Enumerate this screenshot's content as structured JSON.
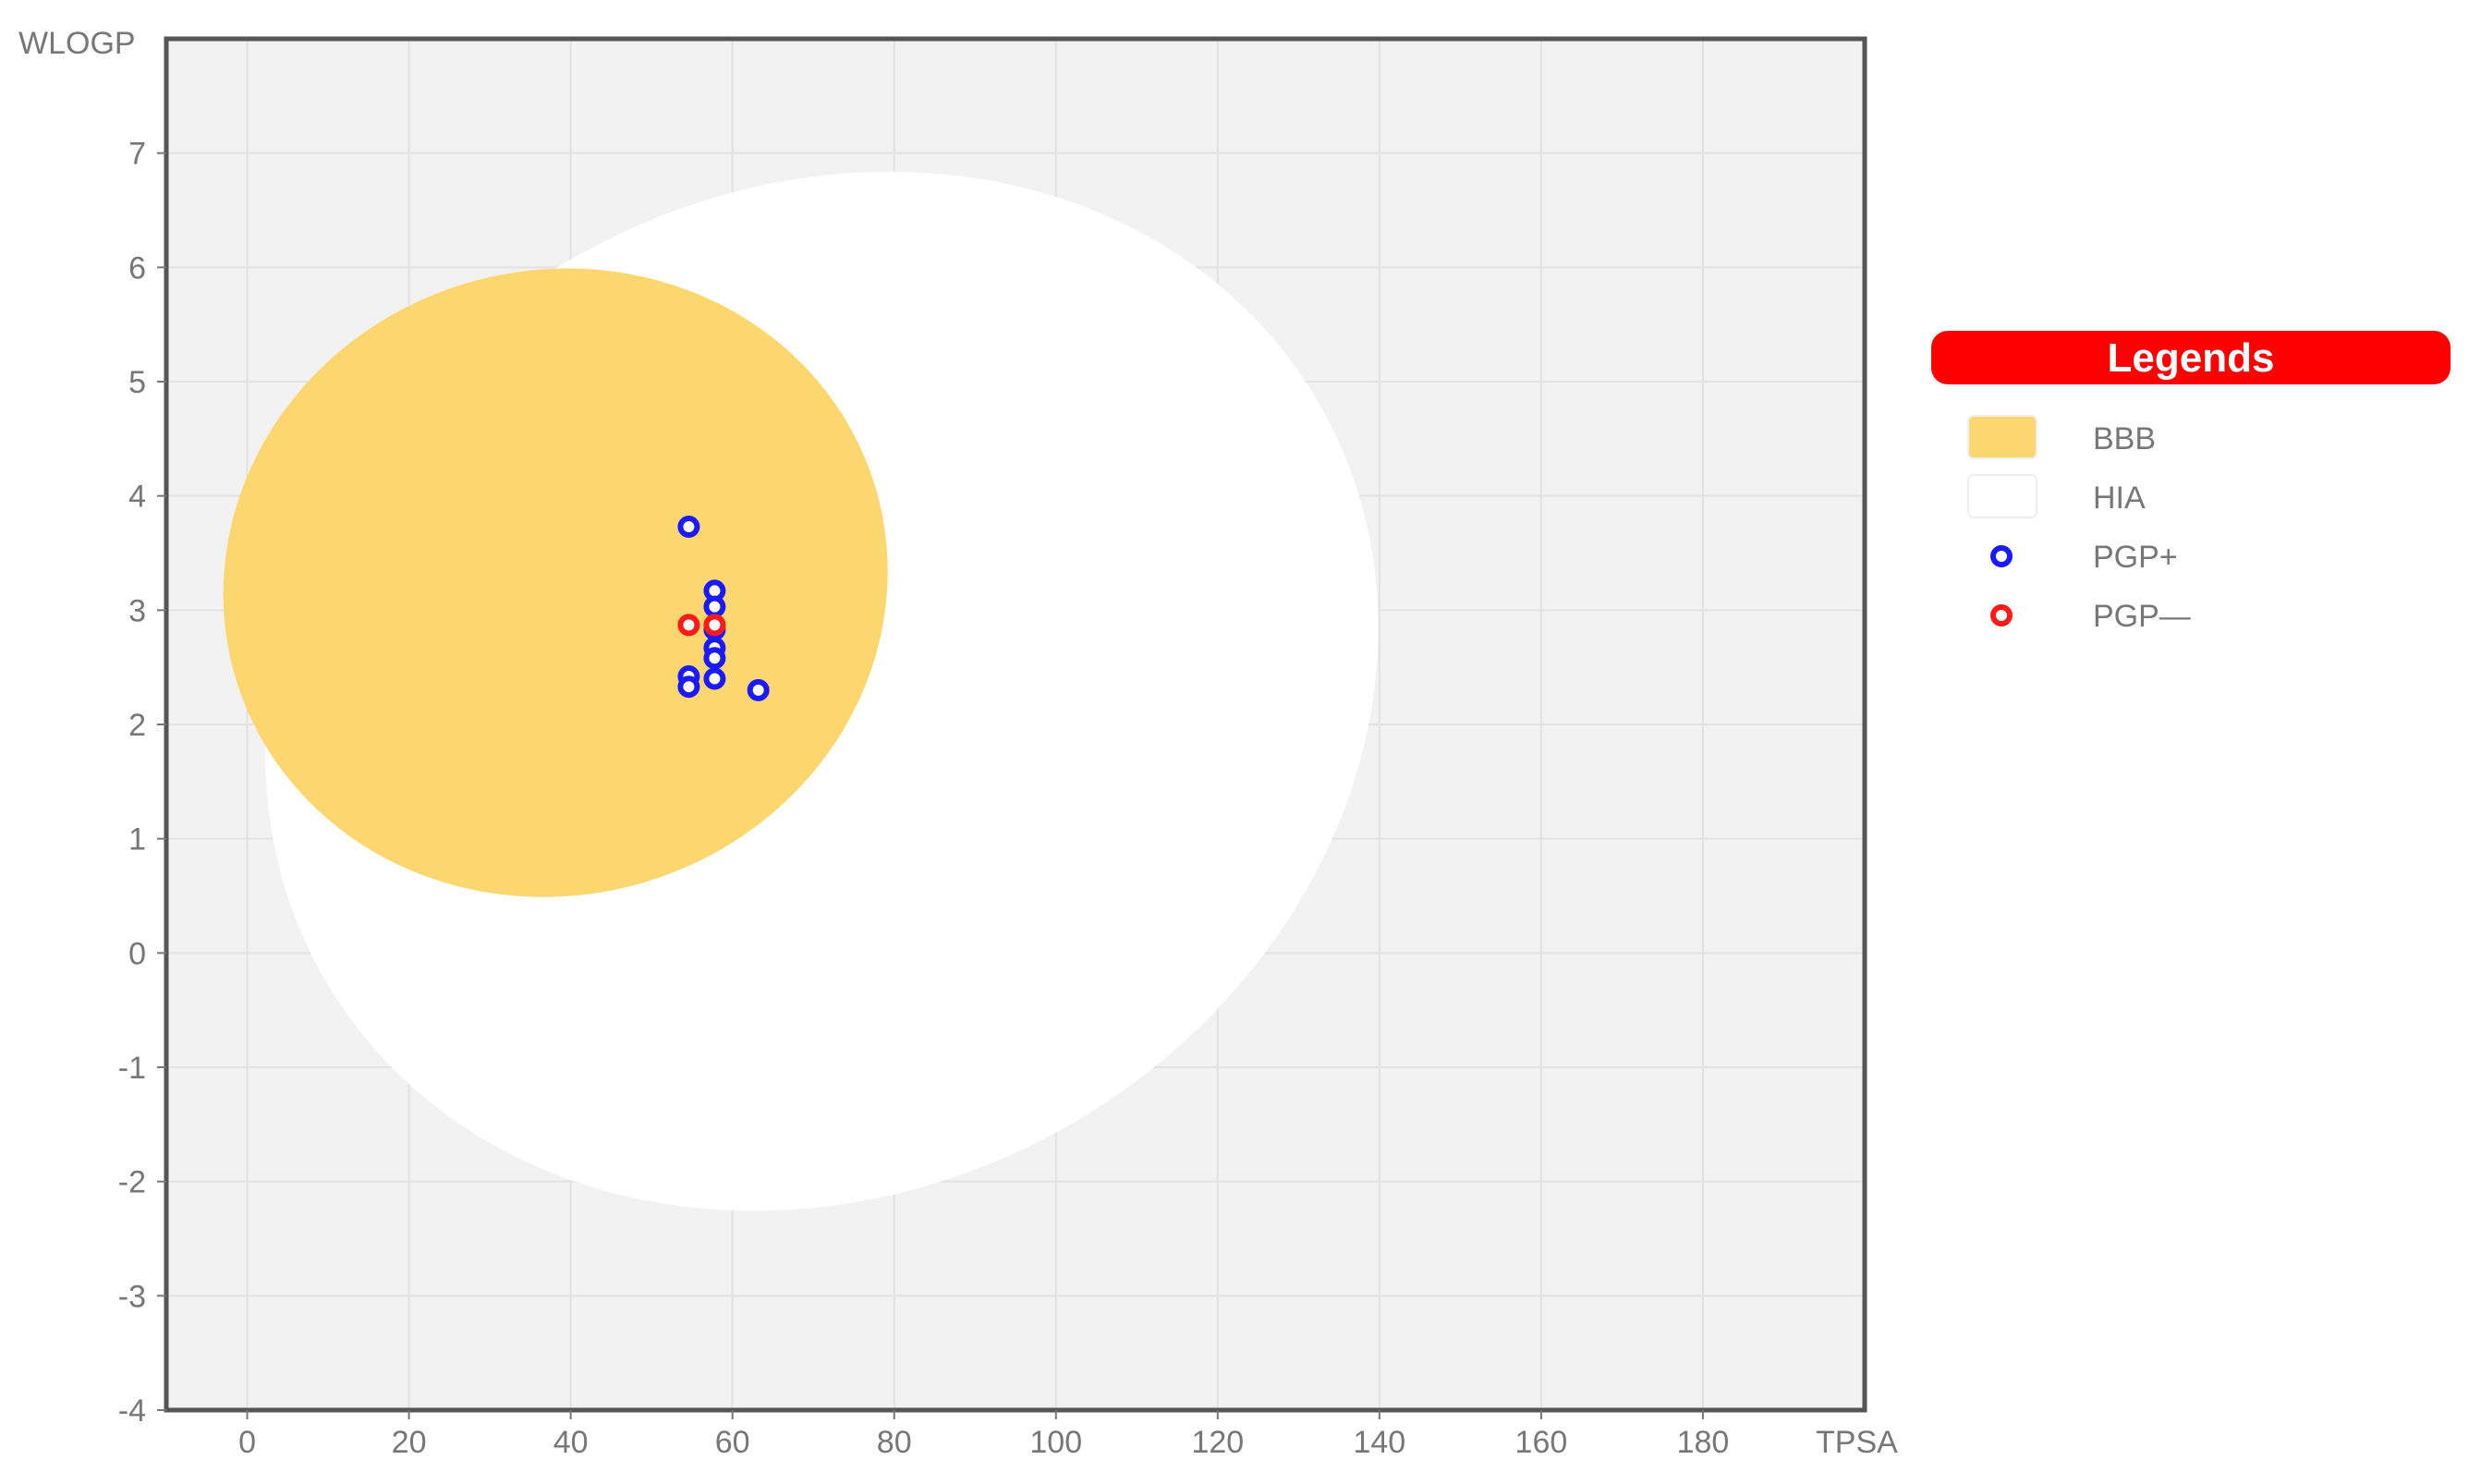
{
  "chart_data": {
    "type": "scatter",
    "title": "",
    "xlabel": "TPSA",
    "ylabel": "WLOGP",
    "xlim": [
      -10,
      200
    ],
    "ylim": [
      -4,
      8
    ],
    "x_ticks": [
      0,
      20,
      40,
      60,
      80,
      100,
      120,
      140,
      160,
      180
    ],
    "y_ticks": [
      -4,
      -3,
      -2,
      -1,
      0,
      1,
      2,
      3,
      4,
      5,
      6,
      7
    ],
    "grid": true,
    "plot_background": "#f2f2f2",
    "regions": [
      {
        "name": "HIA",
        "color": "#ffffff",
        "cx": 71.05,
        "cy": 2.29,
        "rx": 142.09,
        "ry": 8.74,
        "rotation_deg": -1.03
      },
      {
        "name": "BBB",
        "color": "#fcd66e",
        "cx": 38.12,
        "cy": 3.24,
        "rx": 82.56,
        "ry": 5.47,
        "rotation_deg": -0.56
      }
    ],
    "series": [
      {
        "name": "PGP+",
        "color": "#1a1aff",
        "points": [
          [
            54.6,
            3.73
          ],
          [
            57.8,
            3.17
          ],
          [
            57.8,
            3.03
          ],
          [
            57.8,
            2.83
          ],
          [
            57.8,
            2.67
          ],
          [
            57.8,
            2.58
          ],
          [
            54.6,
            2.42
          ],
          [
            54.6,
            2.33
          ],
          [
            57.8,
            2.4
          ],
          [
            63.2,
            2.3
          ]
        ]
      },
      {
        "name": "PGP—",
        "color": "#ff1a1a",
        "points": [
          [
            54.6,
            2.87
          ],
          [
            57.8,
            2.87
          ]
        ]
      }
    ],
    "legend": {
      "title": "Legends",
      "title_color": "#ff0000",
      "items": [
        {
          "label": "BBB",
          "kind": "swatch",
          "color": "#fcd66e"
        },
        {
          "label": "HIA",
          "kind": "swatch",
          "color": "#ffffff"
        },
        {
          "label": "PGP+",
          "kind": "circle",
          "color": "#1a1aff"
        },
        {
          "label": "PGP—",
          "kind": "circle",
          "color": "#ff1a1a"
        }
      ],
      "position": "right"
    }
  }
}
